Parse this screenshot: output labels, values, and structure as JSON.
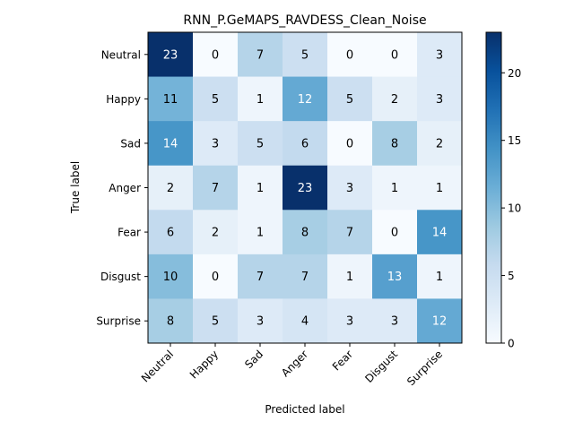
{
  "chart_data": {
    "type": "heatmap",
    "title": "RNN_P.GeMAPS_RAVDESS_Clean_Noise",
    "xlabel": "Predicted label",
    "ylabel": "True label",
    "x_categories": [
      "Neutral",
      "Happy",
      "Sad",
      "Anger",
      "Fear",
      "Disgust",
      "Surprise"
    ],
    "y_categories": [
      "Neutral",
      "Happy",
      "Sad",
      "Anger",
      "Fear",
      "Disgust",
      "Surprise"
    ],
    "matrix": [
      [
        23,
        0,
        7,
        5,
        0,
        0,
        3
      ],
      [
        11,
        5,
        1,
        12,
        5,
        2,
        3
      ],
      [
        14,
        3,
        5,
        6,
        0,
        8,
        2
      ],
      [
        2,
        7,
        1,
        23,
        3,
        1,
        1
      ],
      [
        6,
        2,
        1,
        8,
        7,
        0,
        14
      ],
      [
        10,
        0,
        7,
        7,
        1,
        13,
        1
      ],
      [
        8,
        5,
        3,
        4,
        3,
        3,
        12
      ]
    ],
    "colormap": "Blues",
    "vmin": 0,
    "vmax": 23,
    "colorbar": {
      "ticks": [
        "0",
        "5",
        "10",
        "15",
        "20"
      ]
    },
    "grid": false,
    "colors": {
      "low": "#f7fbff",
      "high": "#08306b",
      "frame": "#000000"
    }
  }
}
